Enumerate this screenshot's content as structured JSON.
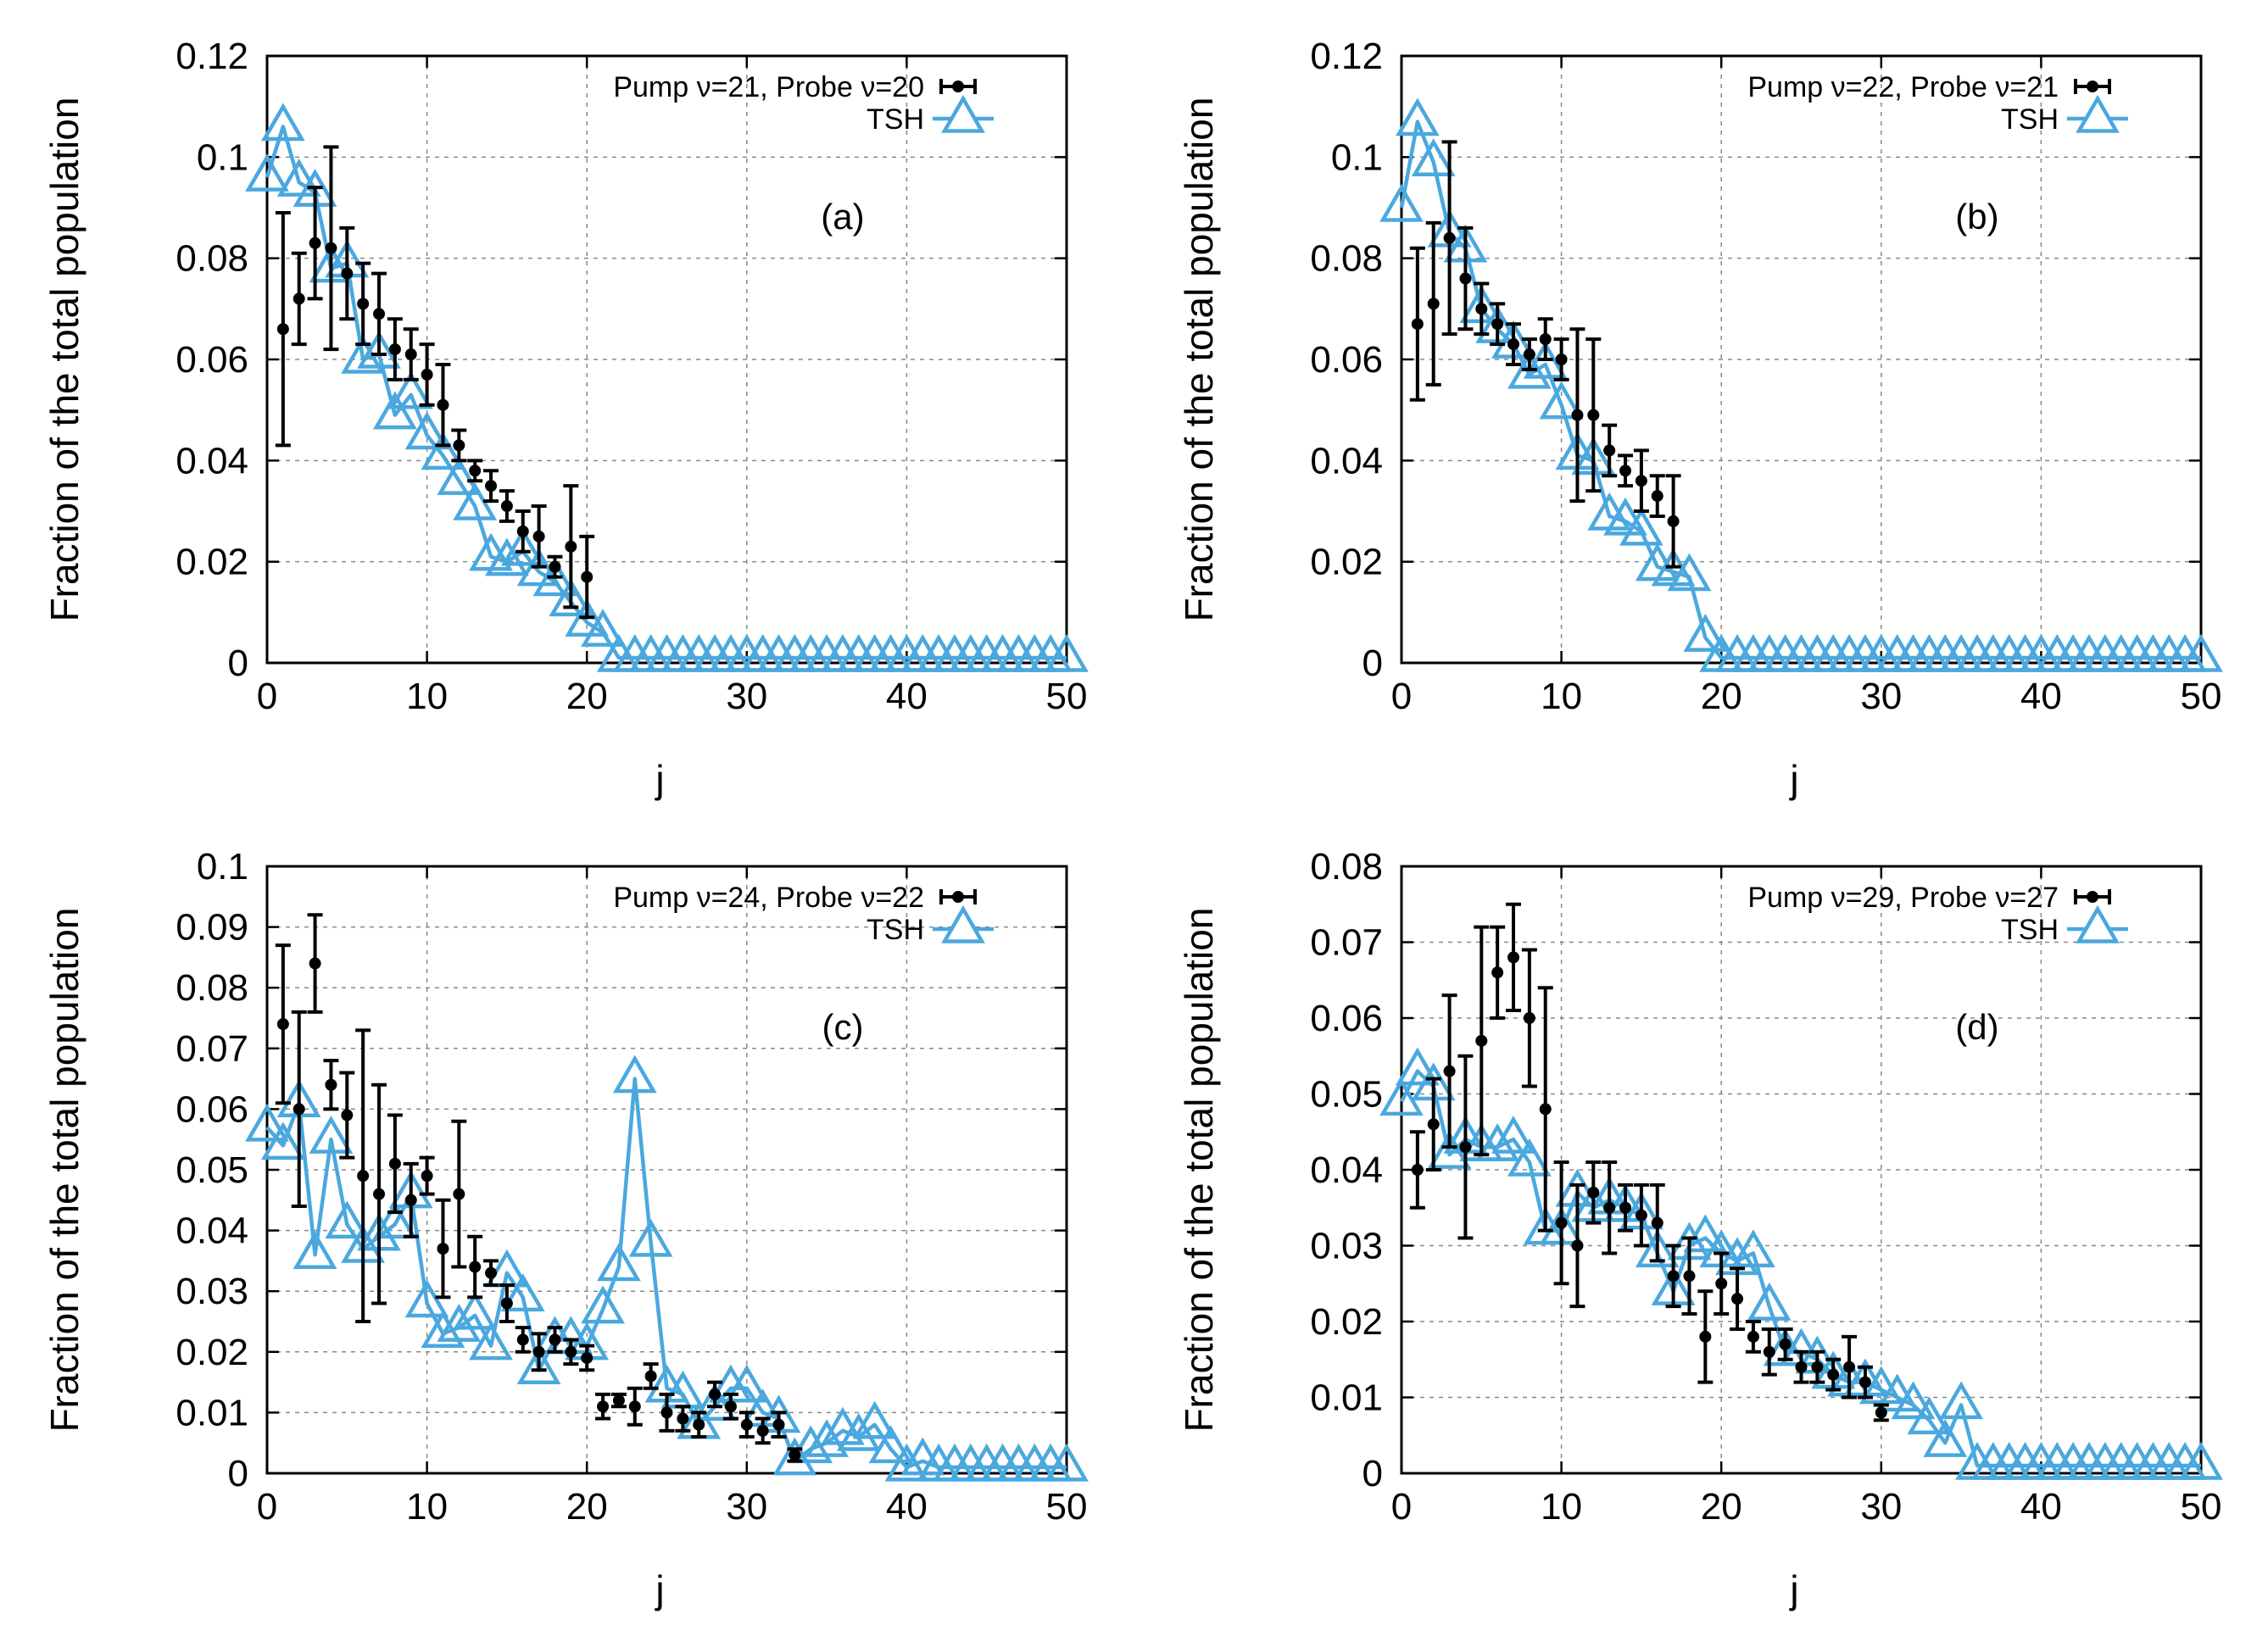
{
  "figure": {
    "colors": {
      "exp": "#000000",
      "tsh": "#4aa8de",
      "grid": "#888888"
    }
  },
  "chart_data": [
    {
      "type": "line",
      "label": "(a)",
      "xlabel": "j",
      "ylabel": "Fraction of the total population",
      "xlim": [
        0,
        50
      ],
      "ylim": [
        0,
        0.12
      ],
      "xticks": [
        "0",
        "10",
        "20",
        "30",
        "40",
        "50"
      ],
      "yticks": [
        "0",
        "0.02",
        "0.04",
        "0.06",
        "0.08",
        "0.1",
        "0.12"
      ],
      "yticks_values": [
        0,
        0.02,
        0.04,
        0.06,
        0.08,
        0.1,
        0.12
      ],
      "legend": {
        "exp": "Pump ν=21, Probe ν=20",
        "tsh": "TSH"
      },
      "series": [
        {
          "name": "Pump ν=21, Probe ν=20",
          "kind": "errorbar",
          "x": [
            1,
            2,
            3,
            4,
            5,
            6,
            7,
            8,
            9,
            10,
            11,
            12,
            13,
            14,
            15,
            16,
            17,
            18,
            19,
            20
          ],
          "y": [
            0.066,
            0.072,
            0.083,
            0.082,
            0.077,
            0.071,
            0.069,
            0.062,
            0.061,
            0.057,
            0.051,
            0.043,
            0.038,
            0.035,
            0.031,
            0.026,
            0.025,
            0.019,
            0.023,
            0.017
          ],
          "yerr": [
            0.023,
            0.009,
            0.011,
            0.02,
            0.009,
            0.008,
            0.008,
            0.006,
            0.005,
            0.006,
            0.008,
            0.003,
            0.002,
            0.003,
            0.003,
            0.004,
            0.006,
            0.002,
            0.012,
            0.008
          ]
        },
        {
          "name": "TSH",
          "kind": "line-triangle",
          "x": [
            0,
            1,
            2,
            3,
            4,
            5,
            6,
            7,
            8,
            9,
            10,
            11,
            12,
            13,
            14,
            15,
            16,
            17,
            18,
            19,
            20,
            21,
            22,
            23,
            24,
            25,
            26,
            27,
            28,
            29,
            30,
            31,
            32,
            33,
            34,
            35,
            36,
            37,
            38,
            39,
            40,
            41,
            42,
            43,
            44,
            45,
            46,
            47,
            48,
            49,
            50
          ],
          "y": [
            0.096,
            0.106,
            0.095,
            0.093,
            0.078,
            0.079,
            0.06,
            0.061,
            0.049,
            0.053,
            0.045,
            0.041,
            0.036,
            0.031,
            0.021,
            0.02,
            0.022,
            0.018,
            0.016,
            0.012,
            0.008,
            0.006,
            0.001,
            0.001,
            0.001,
            0.001,
            0.001,
            0.001,
            0.001,
            0.001,
            0.001,
            0.001,
            0.001,
            0.001,
            0.001,
            0.001,
            0.001,
            0.001,
            0.001,
            0.001,
            0.001,
            0.001,
            0.001,
            0.001,
            0.001,
            0.001,
            0.001,
            0.001,
            0.001,
            0.001,
            0.001
          ]
        }
      ]
    },
    {
      "type": "line",
      "label": "(b)",
      "xlabel": "j",
      "ylabel": "Fraction of the total population",
      "xlim": [
        0,
        50
      ],
      "ylim": [
        0,
        0.12
      ],
      "xticks": [
        "0",
        "10",
        "20",
        "30",
        "40",
        "50"
      ],
      "yticks": [
        "0",
        "0.02",
        "0.04",
        "0.06",
        "0.08",
        "0.1",
        "0.12"
      ],
      "yticks_values": [
        0,
        0.02,
        0.04,
        0.06,
        0.08,
        0.1,
        0.12
      ],
      "legend": {
        "exp": "Pump ν=22, Probe ν=21",
        "tsh": "TSH"
      },
      "series": [
        {
          "name": "Pump ν=22, Probe ν=21",
          "kind": "errorbar",
          "x": [
            1,
            2,
            3,
            4,
            5,
            6,
            7,
            8,
            9,
            10,
            11,
            12,
            13,
            14,
            15,
            16,
            17
          ],
          "y": [
            0.067,
            0.071,
            0.084,
            0.076,
            0.07,
            0.067,
            0.063,
            0.061,
            0.064,
            0.06,
            0.049,
            0.049,
            0.042,
            0.038,
            0.036,
            0.033,
            0.028
          ],
          "yerr": [
            0.015,
            0.016,
            0.019,
            0.01,
            0.005,
            0.004,
            0.004,
            0.003,
            0.004,
            0.004,
            0.017,
            0.015,
            0.005,
            0.003,
            0.006,
            0.004,
            0.009
          ]
        },
        {
          "name": "TSH",
          "kind": "line-triangle",
          "x": [
            0,
            1,
            2,
            3,
            4,
            5,
            6,
            7,
            8,
            9,
            10,
            11,
            12,
            13,
            14,
            15,
            16,
            17,
            18,
            19,
            20,
            21,
            22,
            23,
            24,
            25,
            26,
            27,
            28,
            29,
            30,
            31,
            32,
            33,
            34,
            35,
            36,
            37,
            38,
            39,
            40,
            41,
            42,
            43,
            44,
            45,
            46,
            47,
            48,
            49,
            50
          ],
          "y": [
            0.09,
            0.107,
            0.099,
            0.085,
            0.082,
            0.07,
            0.066,
            0.063,
            0.057,
            0.059,
            0.051,
            0.041,
            0.04,
            0.029,
            0.028,
            0.026,
            0.019,
            0.018,
            0.017,
            0.005,
            0.001,
            0.001,
            0.001,
            0.001,
            0.001,
            0.001,
            0.001,
            0.001,
            0.001,
            0.001,
            0.001,
            0.001,
            0.001,
            0.001,
            0.001,
            0.001,
            0.001,
            0.001,
            0.001,
            0.001,
            0.001,
            0.001,
            0.001,
            0.001,
            0.001,
            0.001,
            0.001,
            0.001,
            0.001,
            0.001,
            0.001
          ]
        }
      ]
    },
    {
      "type": "line",
      "label": "(c)",
      "xlabel": "j",
      "ylabel": "Fraction of the total population",
      "xlim": [
        0,
        50
      ],
      "ylim": [
        0,
        0.1
      ],
      "xticks": [
        "0",
        "10",
        "20",
        "30",
        "40",
        "50"
      ],
      "yticks": [
        "0",
        "0.01",
        "0.02",
        "0.03",
        "0.04",
        "0.05",
        "0.06",
        "0.07",
        "0.08",
        "0.09",
        "0.1"
      ],
      "yticks_values": [
        0,
        0.01,
        0.02,
        0.03,
        0.04,
        0.05,
        0.06,
        0.07,
        0.08,
        0.09,
        0.1
      ],
      "legend": {
        "exp": "Pump ν=24, Probe ν=22",
        "tsh": "TSH"
      },
      "series": [
        {
          "name": "Pump ν=24, Probe ν=22",
          "kind": "errorbar",
          "x": [
            1,
            2,
            3,
            4,
            5,
            6,
            7,
            8,
            9,
            10,
            11,
            12,
            13,
            14,
            15,
            16,
            17,
            18,
            19,
            20,
            21,
            22,
            23,
            24,
            25,
            26,
            27,
            28,
            29,
            30,
            31,
            32,
            33
          ],
          "y": [
            0.074,
            0.06,
            0.084,
            0.064,
            0.059,
            0.049,
            0.046,
            0.051,
            0.045,
            0.049,
            0.037,
            0.046,
            0.034,
            0.033,
            0.028,
            0.022,
            0.02,
            0.022,
            0.02,
            0.019,
            0.011,
            0.012,
            0.011,
            0.016,
            0.01,
            0.009,
            0.008,
            0.013,
            0.011,
            0.008,
            0.007,
            0.008,
            0.003
          ],
          "yerr": [
            0.013,
            0.016,
            0.008,
            0.004,
            0.007,
            0.024,
            0.018,
            0.008,
            0.006,
            0.003,
            0.008,
            0.012,
            0.005,
            0.002,
            0.003,
            0.002,
            0.003,
            0.002,
            0.002,
            0.002,
            0.002,
            0.001,
            0.003,
            0.002,
            0.003,
            0.002,
            0.002,
            0.002,
            0.002,
            0.002,
            0.002,
            0.002,
            0.001
          ]
        },
        {
          "name": "TSH",
          "kind": "line-triangle",
          "x": [
            0,
            1,
            2,
            3,
            4,
            5,
            6,
            7,
            8,
            9,
            10,
            11,
            12,
            13,
            14,
            15,
            16,
            17,
            18,
            19,
            20,
            21,
            22,
            23,
            24,
            25,
            26,
            27,
            28,
            29,
            30,
            31,
            32,
            33,
            34,
            35,
            36,
            37,
            38,
            39,
            40,
            41,
            42,
            43,
            44,
            45,
            46,
            47,
            48,
            49,
            50
          ],
          "y": [
            0.057,
            0.054,
            0.061,
            0.036,
            0.055,
            0.041,
            0.037,
            0.039,
            0.041,
            0.046,
            0.028,
            0.023,
            0.024,
            0.026,
            0.021,
            0.033,
            0.029,
            0.017,
            0.022,
            0.022,
            0.021,
            0.027,
            0.034,
            0.065,
            0.038,
            0.014,
            0.013,
            0.008,
            0.011,
            0.014,
            0.014,
            0.01,
            0.009,
            0.002,
            0.004,
            0.005,
            0.007,
            0.006,
            0.008,
            0.004,
            0.001,
            0.002,
            0.001,
            0.001,
            0.001,
            0.001,
            0.001,
            0.001,
            0.001,
            0.001,
            0.001
          ]
        }
      ]
    },
    {
      "type": "line",
      "label": "(d)",
      "xlabel": "j",
      "ylabel": "Fraction of the total population",
      "xlim": [
        0,
        50
      ],
      "ylim": [
        0,
        0.08
      ],
      "xticks": [
        "0",
        "10",
        "20",
        "30",
        "40",
        "50"
      ],
      "yticks": [
        "0",
        "0.01",
        "0.02",
        "0.03",
        "0.04",
        "0.05",
        "0.06",
        "0.07",
        "0.08"
      ],
      "yticks_values": [
        0,
        0.01,
        0.02,
        0.03,
        0.04,
        0.05,
        0.06,
        0.07,
        0.08
      ],
      "legend": {
        "exp": "Pump ν=29, Probe ν=27",
        "tsh": "TSH"
      },
      "series": [
        {
          "name": "Pump ν=29, Probe ν=27",
          "kind": "errorbar",
          "x": [
            1,
            2,
            3,
            4,
            5,
            6,
            7,
            8,
            9,
            10,
            11,
            12,
            13,
            14,
            15,
            16,
            17,
            18,
            19,
            20,
            21,
            22,
            23,
            24,
            25,
            26,
            27,
            28,
            29,
            30
          ],
          "y": [
            0.04,
            0.046,
            0.053,
            0.043,
            0.057,
            0.066,
            0.068,
            0.06,
            0.048,
            0.033,
            0.03,
            0.037,
            0.035,
            0.035,
            0.034,
            0.033,
            0.026,
            0.026,
            0.018,
            0.025,
            0.023,
            0.018,
            0.016,
            0.017,
            0.014,
            0.014,
            0.013,
            0.014,
            0.012,
            0.008
          ],
          "yerr": [
            0.005,
            0.006,
            0.01,
            0.012,
            0.015,
            0.006,
            0.007,
            0.009,
            0.016,
            0.008,
            0.008,
            0.004,
            0.006,
            0.003,
            0.004,
            0.005,
            0.004,
            0.005,
            0.006,
            0.004,
            0.004,
            0.002,
            0.003,
            0.002,
            0.002,
            0.002,
            0.002,
            0.004,
            0.002,
            0.001
          ]
        },
        {
          "name": "TSH",
          "kind": "line-triangle",
          "x": [
            0,
            1,
            2,
            3,
            4,
            5,
            6,
            7,
            8,
            9,
            10,
            11,
            12,
            13,
            14,
            15,
            16,
            17,
            18,
            19,
            20,
            21,
            22,
            23,
            24,
            25,
            26,
            27,
            28,
            29,
            30,
            31,
            32,
            33,
            34,
            35,
            36,
            37,
            38,
            39,
            40,
            41,
            42,
            43,
            44,
            45,
            46,
            47,
            48,
            49,
            50
          ],
          "y": [
            0.049,
            0.053,
            0.051,
            0.042,
            0.044,
            0.043,
            0.043,
            0.044,
            0.041,
            0.032,
            0.032,
            0.037,
            0.035,
            0.036,
            0.035,
            0.034,
            0.029,
            0.024,
            0.03,
            0.031,
            0.029,
            0.028,
            0.029,
            0.022,
            0.016,
            0.016,
            0.015,
            0.013,
            0.012,
            0.012,
            0.011,
            0.01,
            0.009,
            0.007,
            0.004,
            0.009,
            0.001,
            0.001,
            0.001,
            0.001,
            0.001,
            0.001,
            0.001,
            0.001,
            0.001,
            0.001,
            0.001,
            0.001,
            0.001,
            0.001,
            0.001
          ]
        }
      ]
    }
  ]
}
